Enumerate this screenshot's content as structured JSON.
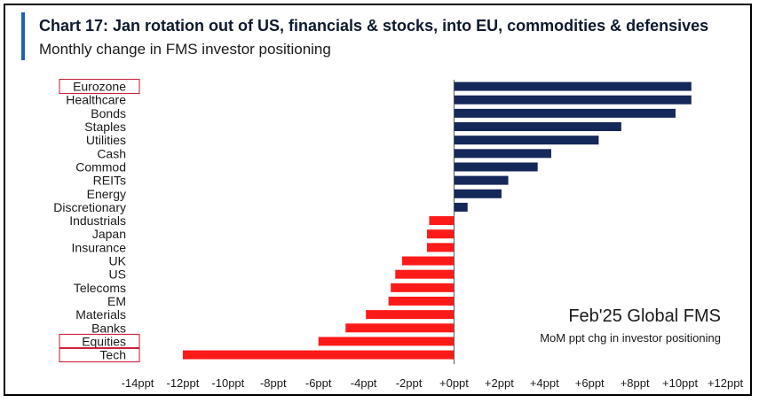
{
  "header": {
    "title": "Chart 17: Jan rotation out of US, financials & stocks, into EU, commodities & defensives",
    "subtitle": "Monthly change in FMS investor positioning"
  },
  "annotation": {
    "heading": "Feb'25 Global FMS",
    "sub": "MoM ppt chg in investor positioning"
  },
  "colors": {
    "positive": "#14285a",
    "negative": "#ff1a1a",
    "accent": "#1f5fbf",
    "highlight_box": "#c8102e"
  },
  "chart_data": {
    "type": "bar",
    "orientation": "horizontal",
    "categories": [
      "Eurozone",
      "Healthcare",
      "Bonds",
      "Staples",
      "Utilities",
      "Cash",
      "Commod",
      "REITs",
      "Energy",
      "Discretionary",
      "Industrials",
      "Japan",
      "Insurance",
      "UK",
      "US",
      "Telecoms",
      "EM",
      "Materials",
      "Banks",
      "Equities",
      "Tech"
    ],
    "values": [
      10.5,
      10.5,
      9.8,
      7.4,
      6.4,
      4.3,
      3.7,
      2.4,
      2.1,
      0.6,
      -1.1,
      -1.2,
      -1.2,
      -2.3,
      -2.6,
      -2.8,
      -2.9,
      -3.9,
      -4.8,
      -6.0,
      -12.0
    ],
    "highlighted": [
      "Eurozone",
      "Equities",
      "Tech"
    ],
    "xlim": [
      -14,
      12
    ],
    "xticks": [
      -14,
      -12,
      -10,
      -8,
      -6,
      -4,
      -2,
      0,
      2,
      4,
      6,
      8,
      10,
      12
    ],
    "xticklabels": [
      "-14ppt",
      "-12ppt",
      "-10ppt",
      "-8ppt",
      "-6ppt",
      "-4ppt",
      "-2ppt",
      "+0ppt",
      "+2ppt",
      "+4ppt",
      "+6ppt",
      "+8ppt",
      "+10ppt",
      "+12ppt"
    ],
    "grid": false,
    "legend": false
  }
}
